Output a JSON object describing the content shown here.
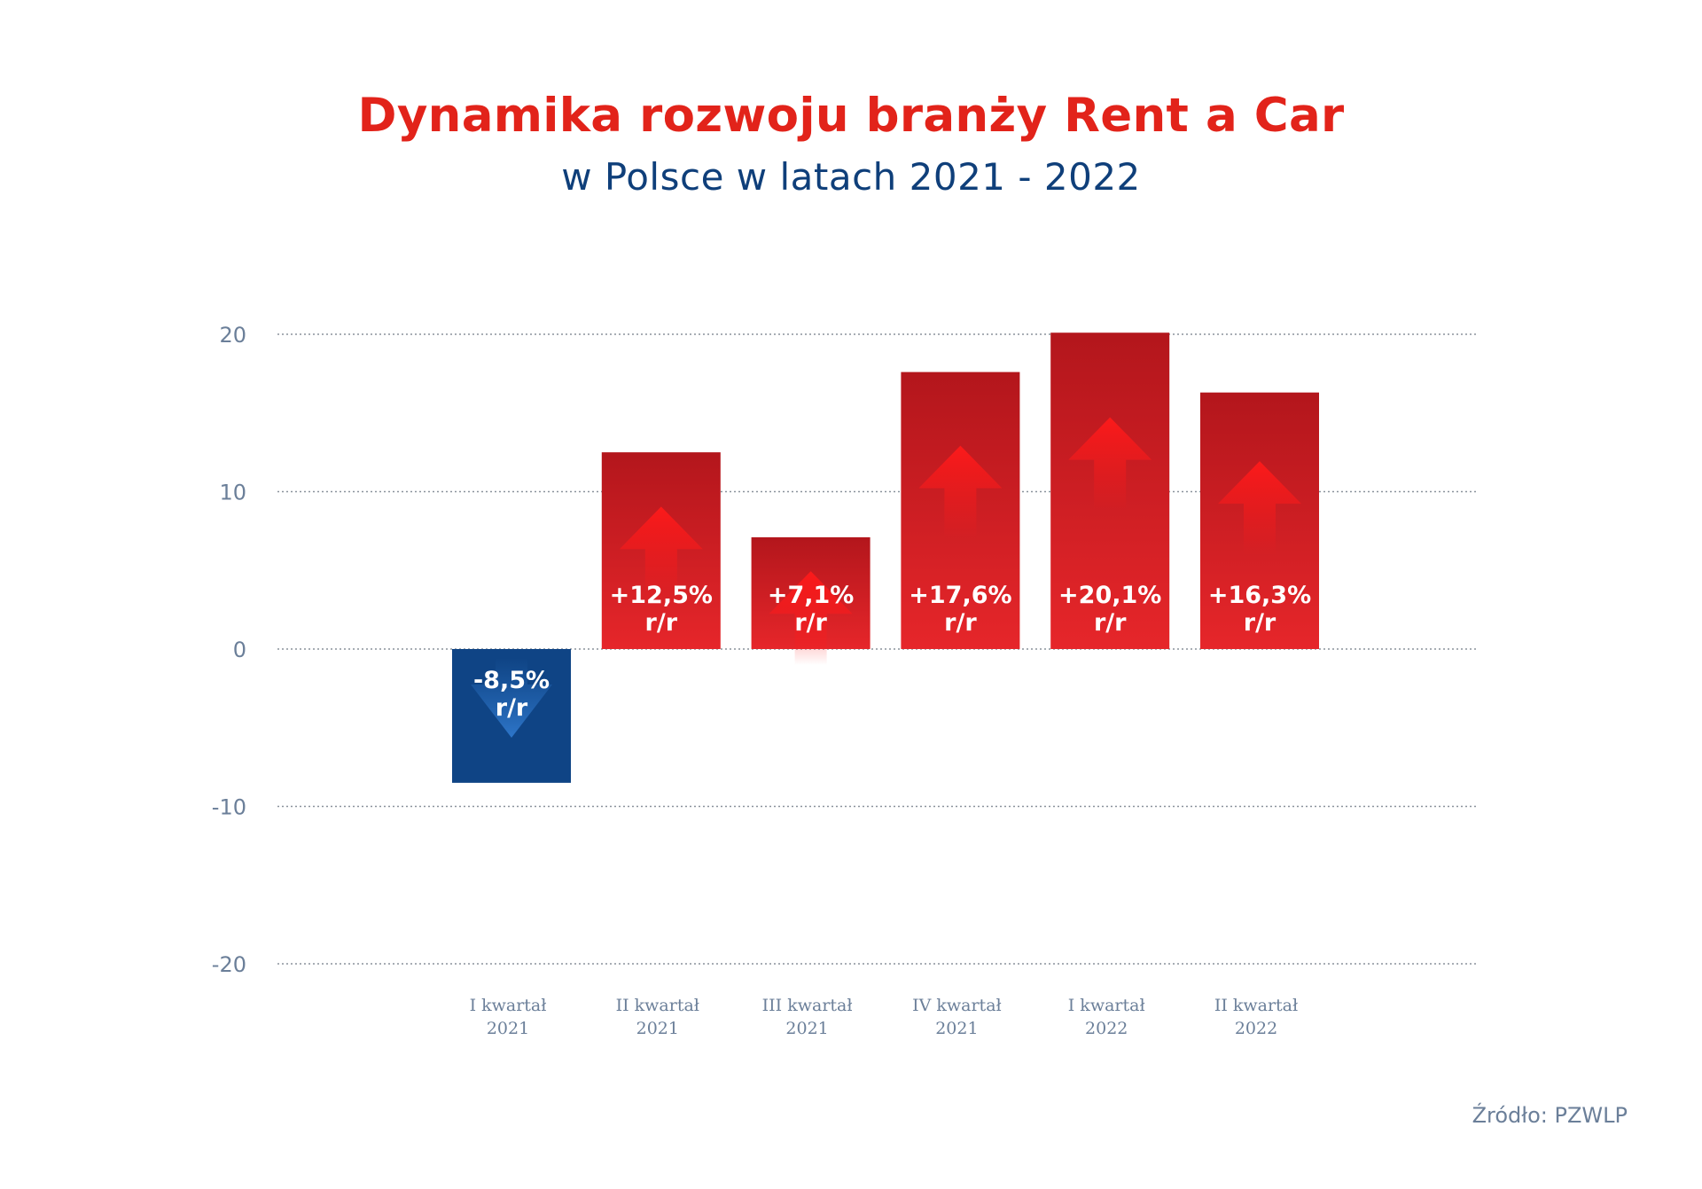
{
  "title": "Dynamika rozwoju branży Rent a Car",
  "subtitle": "w Polsce w latach 2021 - 2022",
  "source": "Źródło: PZWLP",
  "colors": {
    "title": "#e2231a",
    "subtitle": "#0f3f7a",
    "positive_bar": "#d71920",
    "negative_bar": "#0f4485",
    "axis_text": "#6b7f99"
  },
  "chart_data": {
    "type": "bar",
    "categories": [
      [
        "I kwartał",
        "2021"
      ],
      [
        "II kwartał",
        "2021"
      ],
      [
        "III kwartał",
        "2021"
      ],
      [
        "IV kwartał",
        "2021"
      ],
      [
        "I kwartał",
        "2022"
      ],
      [
        "II kwartał",
        "2022"
      ]
    ],
    "values": [
      -8.5,
      12.5,
      7.1,
      17.6,
      20.1,
      16.3
    ],
    "data_labels": [
      "-8,5%",
      "+12,5%",
      "+7,1%",
      "+17,6%",
      "+20,1%",
      "+16,3%"
    ],
    "data_label_suffix": "r/r",
    "ylim": [
      -20,
      20
    ],
    "yticks": [
      20,
      10,
      0,
      -10,
      -20
    ],
    "grid": true,
    "legend": "none"
  }
}
